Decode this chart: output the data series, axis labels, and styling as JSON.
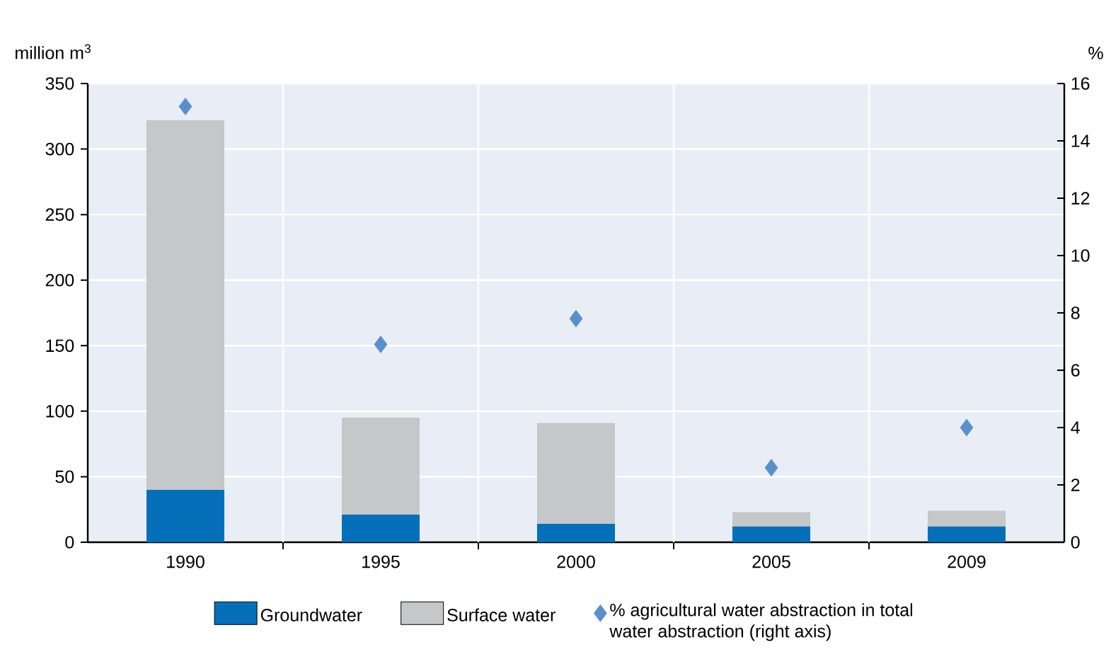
{
  "chart_data": {
    "type": "bar",
    "stacked": true,
    "categories": [
      "1990",
      "1995",
      "2000",
      "2005",
      "2009"
    ],
    "ylabel": "million m$^{3}$",
    "y2label": "%",
    "series": [
      {
        "name": "Groundwater",
        "color": "#0570b9",
        "values": [
          40,
          21,
          14,
          12,
          12
        ]
      },
      {
        "name": "Surface water",
        "color": "#c6c7c8",
        "values": [
          282,
          74,
          77,
          11,
          12
        ]
      },
      {
        "name": "% agricultural water abstraction in total water abstraction (right axis)",
        "type": "scatter",
        "axis": "y2",
        "marker": "diamond",
        "color": "#5b8fcc",
        "values": [
          15.2,
          6.9,
          7.8,
          2.6,
          4.0
        ]
      }
    ],
    "ylim": [
      0,
      350
    ],
    "yticks": [
      0,
      50,
      100,
      150,
      200,
      250,
      300,
      350
    ],
    "y2lim": [
      0,
      16
    ],
    "y2ticks": [
      0,
      2,
      4,
      6,
      8,
      10,
      12,
      14,
      16
    ],
    "grid": true,
    "legend": "bottom"
  }
}
